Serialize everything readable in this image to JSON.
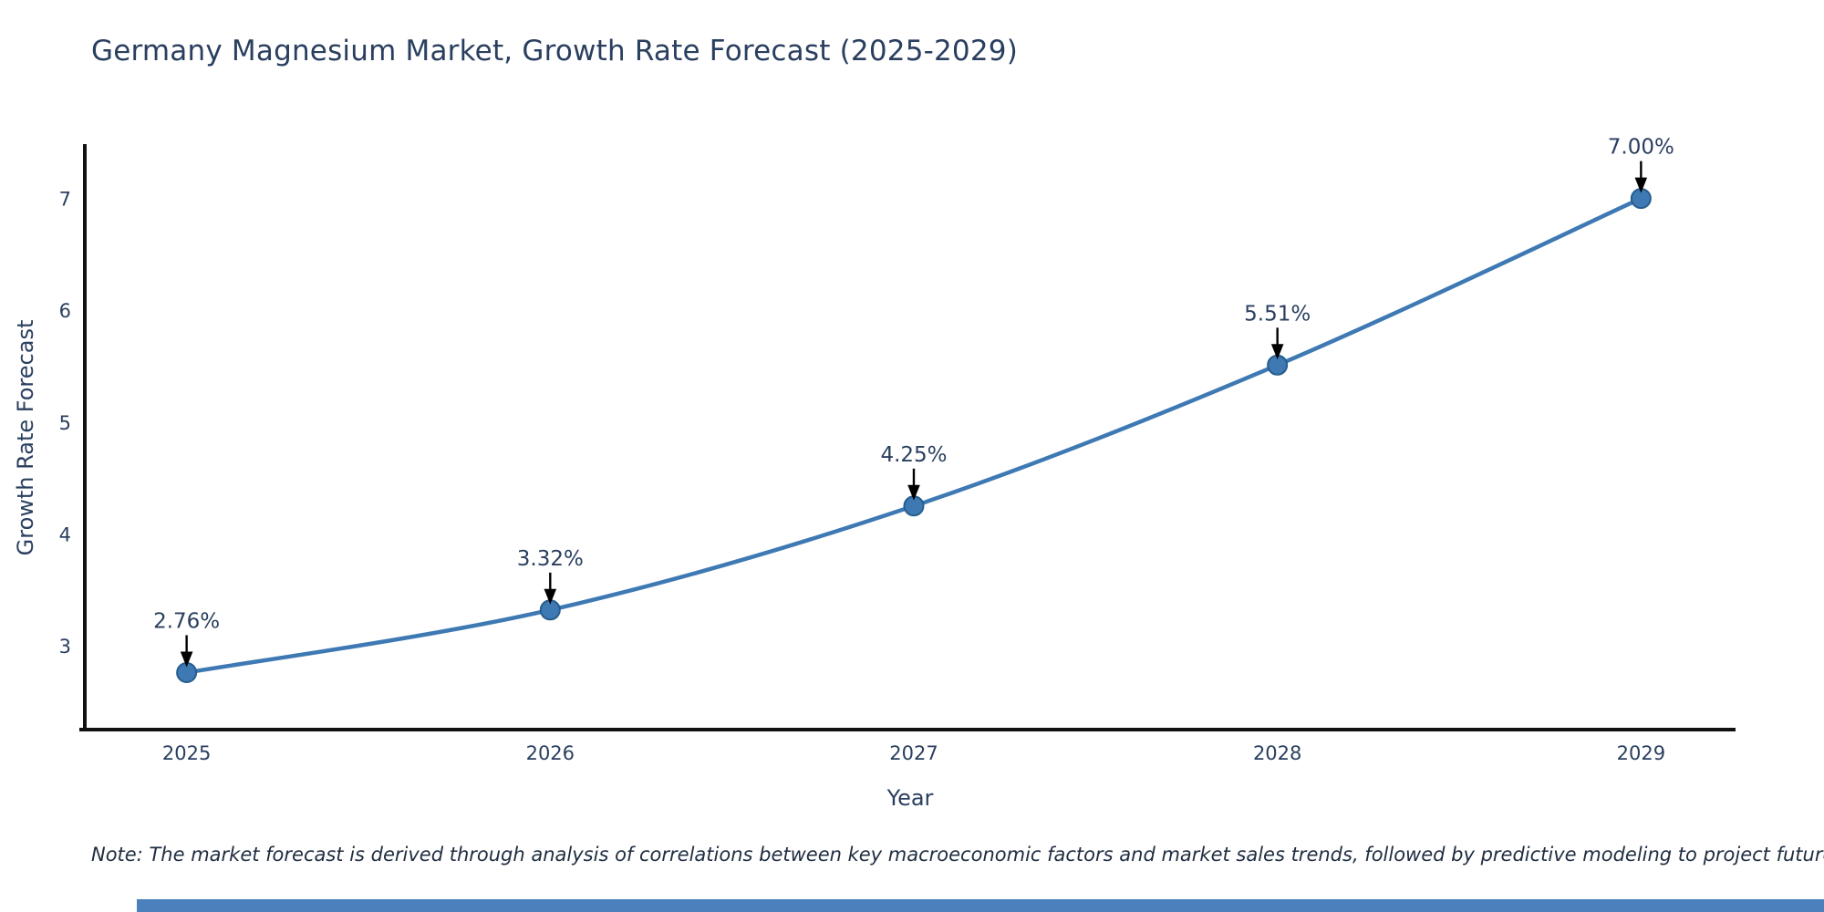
{
  "title": "Germany Magnesium Market, Growth Rate Forecast (2025-2029)",
  "note": "Note: The market forecast is derived through analysis of correlations between key macroeconomic factors and market sales trends, followed by predictive modeling to project future sales.",
  "colors": {
    "title": "#2a3f5f",
    "line": "#3e79b4",
    "marker": "#3e79b4",
    "marker_edge": "#275d8d",
    "axis": "#111111",
    "tick": "#2a3f5f",
    "annotation": "#2a3f5f",
    "arrow": "#000000",
    "accent_bar": "#4a80bb",
    "background": "#ffffff"
  },
  "chart_data": {
    "type": "line",
    "title": "Germany Magnesium Market, Growth Rate Forecast (2025-2029)",
    "xlabel": "Year",
    "ylabel": "Growth Rate Forecast",
    "x": [
      2025,
      2026,
      2027,
      2028,
      2029
    ],
    "y": [
      2.76,
      3.32,
      4.25,
      5.51,
      7.0
    ],
    "point_labels": [
      "2.76%",
      "3.32%",
      "4.25%",
      "5.51%",
      "7.00%"
    ],
    "x_ticks": [
      "2025",
      "2026",
      "2027",
      "2028",
      "2029"
    ],
    "y_ticks": [
      3,
      4,
      5,
      6,
      7
    ],
    "xlim": [
      2024.72,
      2029.26
    ],
    "ylim": [
      2.25,
      7.47
    ],
    "grid": false,
    "line_shape": "spline",
    "legend": null
  }
}
